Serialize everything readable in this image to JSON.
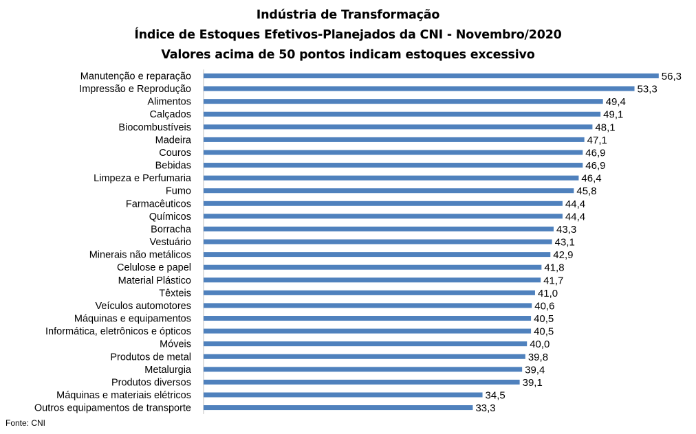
{
  "header": {
    "title": "Indústria de Transformação",
    "subtitle": "Índice de Estoques Efetivos-Planejados da CNI - Novembro/2020",
    "note": "Valores acima de 50 pontos indicam estoques excessivo"
  },
  "source": "Fonte: CNI",
  "colors": {
    "bar": "#4F81BD",
    "text": "#000000",
    "axis": "#BFBFBF"
  },
  "chart_data": {
    "type": "bar",
    "orientation": "horizontal",
    "title": "Indústria de Transformação",
    "subtitle": "Índice de Estoques Efetivos-Planejados da CNI - Novembro/2020",
    "note": "Valores acima de 50 pontos indicam estoques excessivo",
    "grid": false,
    "legend": "none",
    "categories": [
      "Manutenção e reparação",
      "Impressão e Reprodução",
      "Alimentos",
      "Calçados",
      "Biocombustíveis",
      "Madeira",
      "Couros",
      "Bebidas",
      "Limpeza e Perfumaria",
      "Fumo",
      "Farmacêuticos",
      "Químicos",
      "Borracha",
      "Vestuário",
      "Minerais não metálicos",
      "Celulose e papel",
      "Material Plástico",
      "Têxteis",
      "Veículos automotores",
      "Máquinas e equipamentos",
      "Informática, eletrônicos e ópticos",
      "Móveis",
      "Produtos de metal",
      "Metalurgia",
      "Produtos diversos",
      "Máquinas e materiais elétricos",
      "Outros equipamentos de transporte"
    ],
    "values": [
      56.3,
      53.3,
      49.4,
      49.1,
      48.1,
      47.1,
      46.9,
      46.9,
      46.4,
      45.8,
      44.4,
      44.4,
      43.3,
      43.1,
      42.9,
      41.8,
      41.7,
      41.0,
      40.6,
      40.5,
      40.5,
      40.0,
      39.8,
      39.4,
      39.1,
      34.5,
      33.3
    ],
    "value_labels": [
      "56,3",
      "53,3",
      "49,4",
      "49,1",
      "48,1",
      "47,1",
      "46,9",
      "46,9",
      "46,4",
      "45,8",
      "44,4",
      "44,4",
      "43,3",
      "43,1",
      "42,9",
      "41,8",
      "41,7",
      "41,0",
      "40,6",
      "40,5",
      "40,5",
      "40,0",
      "39,8",
      "39,4",
      "39,1",
      "34,5",
      "33,3"
    ]
  }
}
